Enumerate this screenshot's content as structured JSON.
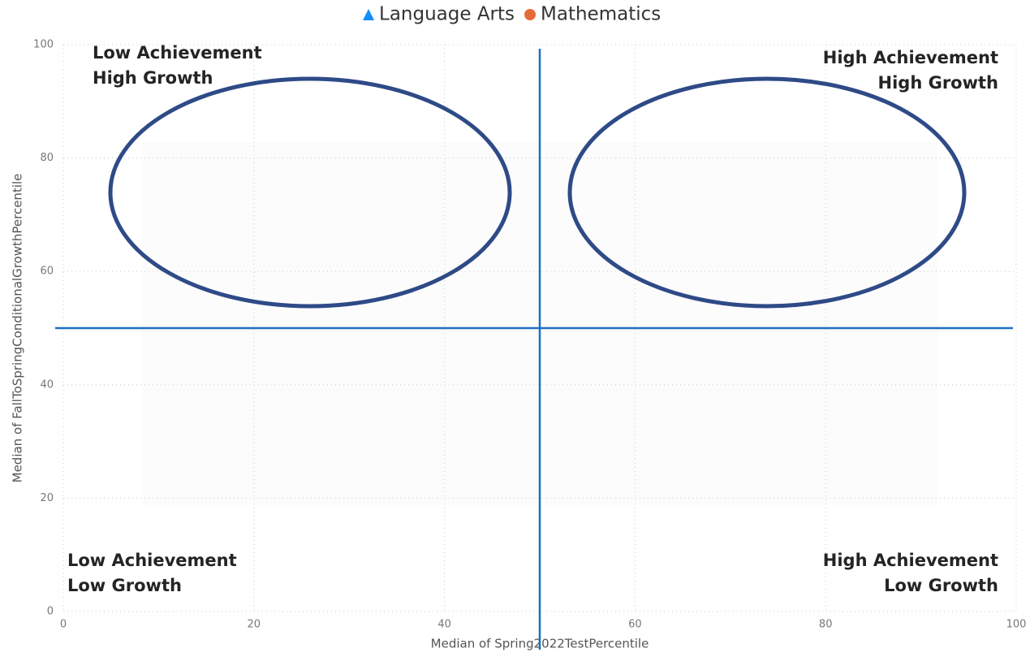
{
  "chart_data": {
    "type": "scatter",
    "series": [
      {
        "name": "Language Arts",
        "color": "#118dff",
        "marker": "triangle",
        "x": [],
        "values": []
      },
      {
        "name": "Mathematics",
        "color": "#e66c37",
        "marker": "circle",
        "x": [],
        "values": []
      }
    ],
    "xlabel": "Median of Spring2022TestPercentile",
    "ylabel": "Median of FallToSpringConditionalGrowthPercentile",
    "xlim": [
      0,
      100
    ],
    "xticks": [
      0,
      20,
      40,
      60,
      80,
      100
    ],
    "ylim": [
      0,
      100
    ],
    "yticks": [
      0,
      20,
      40,
      60,
      80,
      100
    ],
    "grid": true,
    "legend": "top",
    "reference_lines": {
      "x": 50,
      "y": 50,
      "color": "#1f6fbf"
    },
    "annotations": [
      {
        "lines": [
          "Low Achievement",
          "High Growth"
        ]
      },
      {
        "lines": [
          "High Achievement",
          "High Growth"
        ]
      },
      {
        "lines": [
          "Low Achievement",
          "Low Growth"
        ]
      },
      {
        "lines": [
          "High Achievement",
          "Low Growth"
        ]
      }
    ]
  }
}
